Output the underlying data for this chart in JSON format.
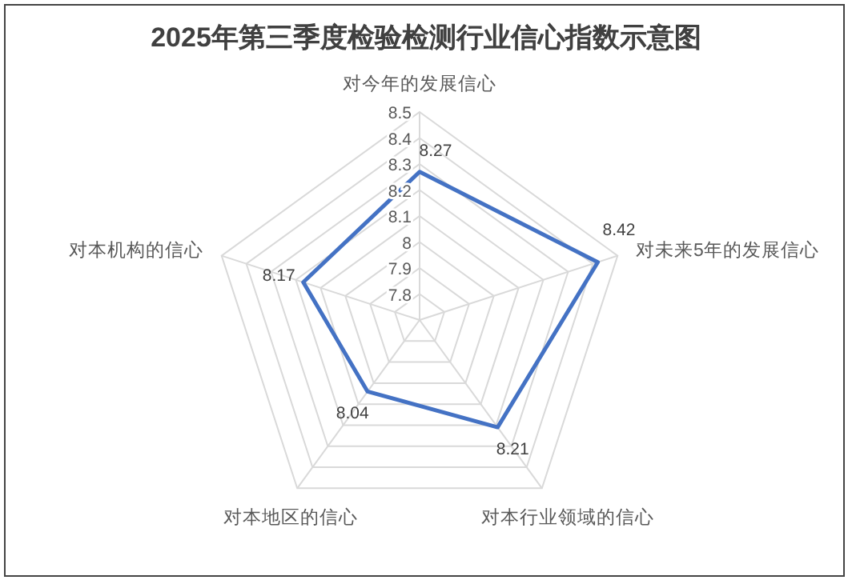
{
  "chart_data": {
    "type": "radar",
    "title": "2025年第三季度检验检测行业信心指数示意图",
    "categories": [
      "对今年的发展信心",
      "对未来5年的发展信心",
      "对本行业领域的信心",
      "对本地区的信心",
      "对本机构的信心"
    ],
    "series": [
      {
        "color": "#4472c4",
        "values": [
          8.27,
          8.42,
          8.21,
          8.04,
          8.17
        ]
      }
    ],
    "ylim": [
      7.7,
      8.5
    ],
    "yticks": [
      7.8,
      7.9,
      8,
      8.1,
      8.2,
      8.3,
      8.4,
      8.5
    ],
    "data_labels": true,
    "grid": true,
    "marker": "none",
    "line_style": "solid"
  }
}
